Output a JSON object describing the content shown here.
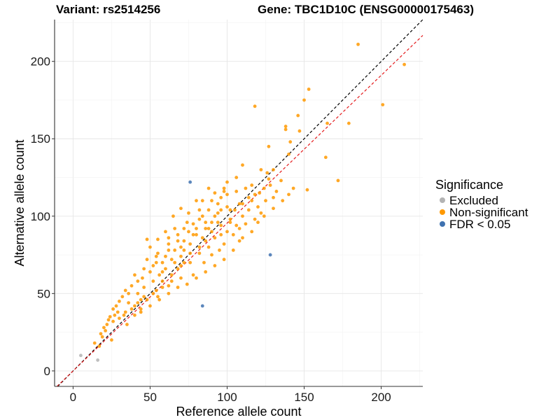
{
  "title_left": "Variant: rs2514256",
  "title_right": "Gene: TBC1D10C (ENSG00000175463)",
  "chart_data": {
    "type": "scatter",
    "xlabel": "Reference allele count",
    "ylabel": "Alternative allele count",
    "xlim": [
      -12,
      227
    ],
    "ylim": [
      -10,
      227
    ],
    "xticks": [
      0,
      50,
      100,
      150,
      200
    ],
    "yticks": [
      0,
      50,
      100,
      150,
      200
    ],
    "grid": true,
    "legend": {
      "title": "Significance",
      "placement": "right",
      "entries": [
        {
          "label": "Excluded",
          "color": "#b3b3b3"
        },
        {
          "label": "Non-significant",
          "color": "#ff9900"
        },
        {
          "label": "FDR < 0.05",
          "color": "#3f72b0"
        }
      ]
    },
    "reference_lines": [
      {
        "name": "identity",
        "style": "dashed",
        "color": "#000000",
        "slope": 1.0,
        "intercept": 0
      },
      {
        "name": "fit",
        "style": "dashed",
        "color": "#e41a1c",
        "slope": 0.955,
        "intercept": 0
      }
    ],
    "series": [
      {
        "name": "Excluded",
        "color": "#b3b3b3",
        "points": [
          [
            5,
            10
          ],
          [
            16,
            7
          ]
        ]
      },
      {
        "name": "FDR < 0.05",
        "color": "#3f72b0",
        "points": [
          [
            76,
            122
          ],
          [
            128,
            75
          ],
          [
            84,
            42
          ]
        ]
      },
      {
        "name": "Non-significant",
        "color": "#ff9900",
        "points": [
          [
            185,
            211
          ],
          [
            215,
            198
          ],
          [
            153,
            182
          ],
          [
            150,
            175
          ],
          [
            201,
            172
          ],
          [
            118,
            171
          ],
          [
            146,
            165
          ],
          [
            165,
            160
          ],
          [
            179,
            160
          ],
          [
            138,
            158
          ],
          [
            138,
            156
          ],
          [
            147,
            155
          ],
          [
            141,
            148
          ],
          [
            140,
            140
          ],
          [
            127,
            145
          ],
          [
            164,
            138
          ],
          [
            172,
            123
          ],
          [
            110,
            133
          ],
          [
            130,
            130
          ],
          [
            126,
            128
          ],
          [
            122,
            130
          ],
          [
            127,
            124
          ],
          [
            135,
            123
          ],
          [
            143,
            118
          ],
          [
            152,
            117
          ],
          [
            130,
            112
          ],
          [
            106,
            125
          ],
          [
            100,
            122
          ],
          [
            116,
            120
          ],
          [
            121,
            115
          ],
          [
            125,
            110
          ],
          [
            130,
            105
          ],
          [
            110,
            108
          ],
          [
            105,
            104
          ],
          [
            100,
            106
          ],
          [
            96,
            112
          ],
          [
            92,
            100
          ],
          [
            88,
            104
          ],
          [
            84,
            110
          ],
          [
            90,
            96
          ],
          [
            86,
            92
          ],
          [
            82,
            98
          ],
          [
            78,
            95
          ],
          [
            80,
            88
          ],
          [
            75,
            90
          ],
          [
            72,
            84
          ],
          [
            68,
            88
          ],
          [
            70,
            80
          ],
          [
            66,
            78
          ],
          [
            62,
            82
          ],
          [
            60,
            74
          ],
          [
            58,
            70
          ],
          [
            55,
            76
          ],
          [
            52,
            68
          ],
          [
            50,
            64
          ],
          [
            48,
            72
          ],
          [
            45,
            60
          ],
          [
            42,
            58
          ],
          [
            40,
            62
          ],
          [
            38,
            55
          ],
          [
            36,
            50
          ],
          [
            34,
            52
          ],
          [
            32,
            48
          ],
          [
            30,
            45
          ],
          [
            28,
            42
          ],
          [
            26,
            40
          ],
          [
            24,
            35
          ],
          [
            22,
            30
          ],
          [
            20,
            28
          ],
          [
            18,
            24
          ],
          [
            14,
            18
          ],
          [
            17,
            16
          ],
          [
            25,
            20
          ],
          [
            35,
            30
          ],
          [
            44,
            38
          ],
          [
            55,
            48
          ],
          [
            62,
            55
          ],
          [
            70,
            60
          ],
          [
            78,
            62
          ],
          [
            85,
            70
          ],
          [
            90,
            75
          ],
          [
            95,
            78
          ],
          [
            98,
            82
          ],
          [
            104,
            88
          ],
          [
            108,
            92
          ],
          [
            112,
            95
          ],
          [
            118,
            98
          ],
          [
            122,
            102
          ],
          [
            60,
            90
          ],
          [
            55,
            85
          ],
          [
            50,
            80
          ],
          [
            48,
            85
          ],
          [
            65,
            100
          ],
          [
            70,
            105
          ],
          [
            75,
            102
          ],
          [
            80,
            110
          ],
          [
            88,
            118
          ],
          [
            92,
            115
          ],
          [
            96,
            104
          ],
          [
            102,
            98
          ],
          [
            86,
            84
          ],
          [
            82,
            80
          ],
          [
            76,
            76
          ],
          [
            72,
            70
          ],
          [
            68,
            66
          ],
          [
            64,
            62
          ],
          [
            58,
            58
          ],
          [
            54,
            52
          ],
          [
            46,
            48
          ],
          [
            42,
            44
          ],
          [
            38,
            40
          ],
          [
            34,
            38
          ],
          [
            30,
            34
          ],
          [
            26,
            32
          ],
          [
            66,
            92
          ],
          [
            74,
            96
          ],
          [
            84,
            100
          ],
          [
            94,
            108
          ],
          [
            100,
            114
          ],
          [
            106,
            116
          ],
          [
            112,
            118
          ],
          [
            116,
            110
          ],
          [
            120,
            106
          ],
          [
            124,
            100
          ],
          [
            108,
            84
          ],
          [
            104,
            78
          ],
          [
            98,
            72
          ],
          [
            92,
            68
          ],
          [
            86,
            64
          ],
          [
            80,
            60
          ],
          [
            74,
            56
          ],
          [
            68,
            54
          ],
          [
            62,
            50
          ],
          [
            56,
            46
          ],
          [
            50,
            42
          ],
          [
            44,
            40
          ],
          [
            40,
            36
          ],
          [
            64,
            72
          ],
          [
            70,
            74
          ],
          [
            76,
            82
          ],
          [
            84,
            86
          ],
          [
            90,
            90
          ],
          [
            96,
            94
          ],
          [
            102,
            96
          ],
          [
            110,
            100
          ],
          [
            114,
            104
          ],
          [
            58,
            64
          ],
          [
            52,
            58
          ],
          [
            46,
            54
          ],
          [
            42,
            50
          ],
          [
            66,
            70
          ],
          [
            72,
            78
          ],
          [
            80,
            92
          ],
          [
            86,
            96
          ],
          [
            94,
            102
          ],
          [
            100,
            90
          ],
          [
            106,
            94
          ],
          [
            110,
            86
          ],
          [
            116,
            90
          ],
          [
            120,
            96
          ],
          [
            60,
            66
          ],
          [
            56,
            62
          ],
          [
            54,
            70
          ],
          [
            62,
            78
          ],
          [
            68,
            84
          ],
          [
            78,
            88
          ],
          [
            88,
            92
          ],
          [
            92,
            86
          ],
          [
            96,
            88
          ],
          [
            102,
            104
          ],
          [
            108,
            108
          ],
          [
            114,
            112
          ],
          [
            118,
            114
          ],
          [
            124,
            118
          ],
          [
            128,
            120
          ],
          [
            132,
            116
          ],
          [
            136,
            110
          ],
          [
            140,
            114
          ],
          [
            98,
            118
          ],
          [
            94,
            96
          ],
          [
            88,
            80
          ],
          [
            82,
            76
          ],
          [
            76,
            70
          ],
          [
            70,
            68
          ],
          [
            64,
            58
          ],
          [
            58,
            54
          ],
          [
            52,
            50
          ],
          [
            48,
            46
          ],
          [
            44,
            46
          ],
          [
            40,
            42
          ],
          [
            36,
            44
          ],
          [
            33,
            36
          ],
          [
            29,
            38
          ],
          [
            27,
            36
          ],
          [
            23,
            33
          ],
          [
            21,
            26
          ],
          [
            19,
            22
          ],
          [
            46,
            66
          ],
          [
            54,
            74
          ],
          [
            62,
            86
          ],
          [
            72,
            92
          ],
          [
            82,
            104
          ],
          [
            90,
            110
          ],
          [
            98,
            116
          ]
        ]
      }
    ]
  }
}
